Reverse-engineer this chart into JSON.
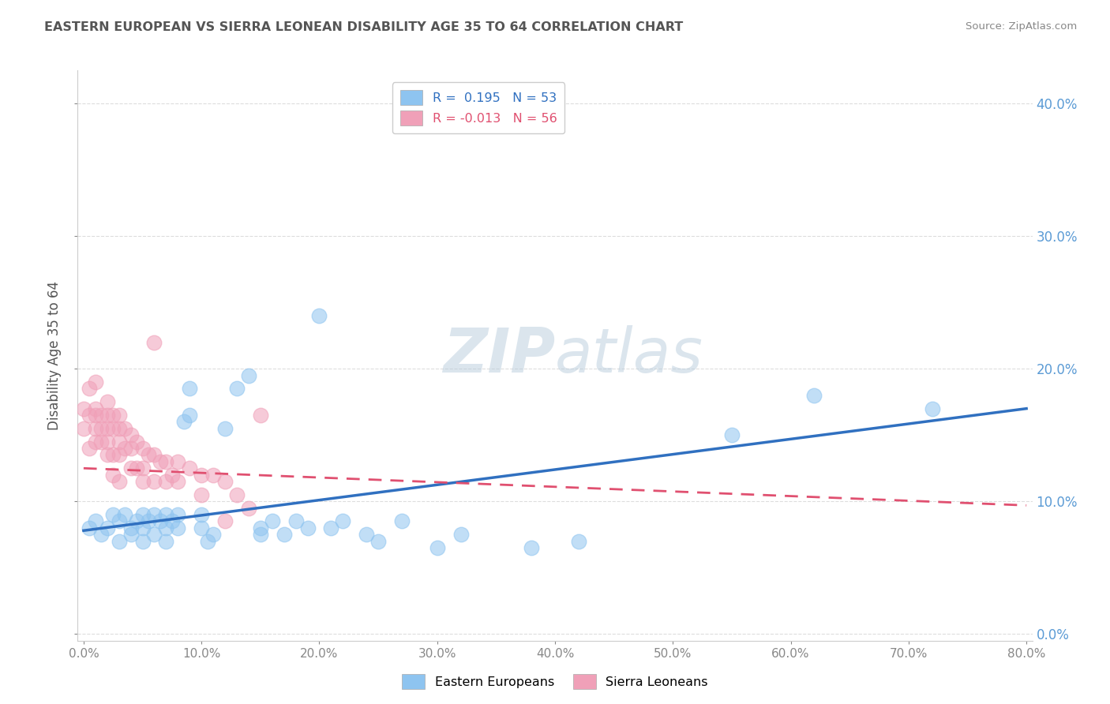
{
  "title": "EASTERN EUROPEAN VS SIERRA LEONEAN DISABILITY AGE 35 TO 64 CORRELATION CHART",
  "source_text": "Source: ZipAtlas.com",
  "ylabel": "Disability Age 35 to 64",
  "xlabel": "",
  "xlim": [
    -0.005,
    0.805
  ],
  "ylim": [
    -0.005,
    0.425
  ],
  "yticks": [
    0.0,
    0.1,
    0.2,
    0.3,
    0.4
  ],
  "xticks": [
    0.0,
    0.1,
    0.2,
    0.3,
    0.4,
    0.5,
    0.6,
    0.7,
    0.8
  ],
  "blue_color": "#8EC4F0",
  "pink_color": "#F0A0B8",
  "blue_line_color": "#3070C0",
  "pink_line_color": "#E05070",
  "legend_blue_label": "R =  0.195   N = 53",
  "legend_pink_label": "R = -0.013   N = 56",
  "legend_blue_text_color": "#3070C0",
  "legend_pink_text_color": "#E05070",
  "title_color": "#555555",
  "source_color": "#888888",
  "blue_x": [
    0.005,
    0.01,
    0.015,
    0.02,
    0.025,
    0.03,
    0.03,
    0.035,
    0.04,
    0.04,
    0.045,
    0.05,
    0.05,
    0.05,
    0.055,
    0.06,
    0.06,
    0.065,
    0.07,
    0.07,
    0.07,
    0.075,
    0.08,
    0.08,
    0.085,
    0.09,
    0.09,
    0.1,
    0.1,
    0.105,
    0.11,
    0.12,
    0.13,
    0.14,
    0.15,
    0.15,
    0.16,
    0.17,
    0.18,
    0.19,
    0.2,
    0.21,
    0.22,
    0.24,
    0.25,
    0.27,
    0.3,
    0.32,
    0.38,
    0.42,
    0.55,
    0.62,
    0.72
  ],
  "blue_y": [
    0.08,
    0.085,
    0.075,
    0.08,
    0.09,
    0.085,
    0.07,
    0.09,
    0.08,
    0.075,
    0.085,
    0.09,
    0.08,
    0.07,
    0.085,
    0.09,
    0.075,
    0.085,
    0.09,
    0.08,
    0.07,
    0.085,
    0.09,
    0.08,
    0.16,
    0.165,
    0.185,
    0.09,
    0.08,
    0.07,
    0.075,
    0.155,
    0.185,
    0.195,
    0.08,
    0.075,
    0.085,
    0.075,
    0.085,
    0.08,
    0.24,
    0.08,
    0.085,
    0.075,
    0.07,
    0.085,
    0.065,
    0.075,
    0.065,
    0.07,
    0.15,
    0.18,
    0.17
  ],
  "pink_x": [
    0.0,
    0.0,
    0.005,
    0.005,
    0.01,
    0.01,
    0.01,
    0.01,
    0.015,
    0.015,
    0.015,
    0.02,
    0.02,
    0.02,
    0.02,
    0.02,
    0.025,
    0.025,
    0.025,
    0.03,
    0.03,
    0.03,
    0.03,
    0.035,
    0.035,
    0.04,
    0.04,
    0.04,
    0.045,
    0.045,
    0.05,
    0.05,
    0.05,
    0.055,
    0.06,
    0.06,
    0.065,
    0.07,
    0.07,
    0.075,
    0.08,
    0.08,
    0.09,
    0.1,
    0.1,
    0.11,
    0.12,
    0.12,
    0.13,
    0.14,
    0.15,
    0.06,
    0.005,
    0.01,
    0.025,
    0.03
  ],
  "pink_y": [
    0.17,
    0.155,
    0.165,
    0.14,
    0.17,
    0.165,
    0.155,
    0.145,
    0.165,
    0.155,
    0.145,
    0.175,
    0.165,
    0.155,
    0.145,
    0.135,
    0.165,
    0.155,
    0.135,
    0.165,
    0.155,
    0.145,
    0.135,
    0.155,
    0.14,
    0.15,
    0.14,
    0.125,
    0.145,
    0.125,
    0.14,
    0.125,
    0.115,
    0.135,
    0.135,
    0.115,
    0.13,
    0.13,
    0.115,
    0.12,
    0.13,
    0.115,
    0.125,
    0.12,
    0.105,
    0.12,
    0.115,
    0.085,
    0.105,
    0.095,
    0.165,
    0.22,
    0.185,
    0.19,
    0.12,
    0.115
  ],
  "background_color": "#FFFFFF",
  "grid_color": "#DDDDDD",
  "watermark_text": "ZIPatlas",
  "watermark_color": "#C8D8E8",
  "bottom_legend_labels": [
    "Eastern Europeans",
    "Sierra Leoneans"
  ]
}
